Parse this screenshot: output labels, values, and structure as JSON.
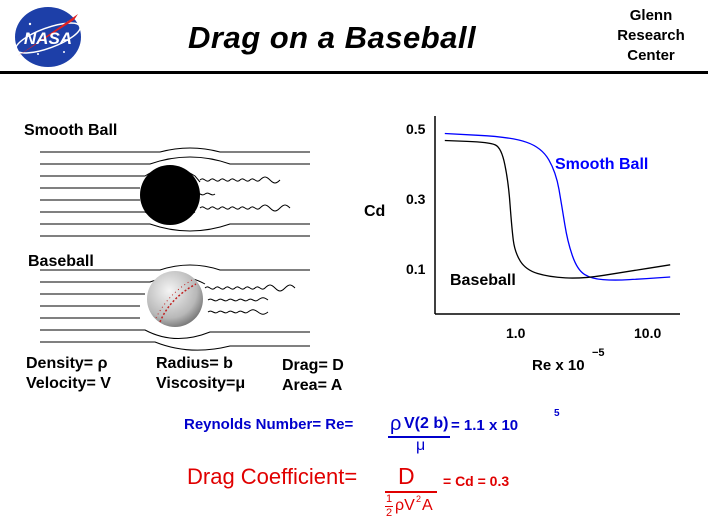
{
  "header": {
    "logo_text": "NASA",
    "title": "Drag on a Baseball",
    "center_lines": [
      "Glenn",
      "Research",
      "Center"
    ]
  },
  "left": {
    "smooth_label": "Smooth Ball",
    "baseball_label": "Baseball"
  },
  "variables": {
    "density": "Density= ρ",
    "velocity": "Velocity= V",
    "radius": "Radius= b",
    "viscosity": "Viscosity=μ",
    "drag": "Drag= D",
    "area": "Area= A"
  },
  "chart_data": {
    "type": "line",
    "ylabel": "Cd",
    "xlabel": "Re x 10",
    "xlabel_exp": "−5",
    "y_ticks": [
      "0.5",
      "0.3",
      "0.1"
    ],
    "x_ticks": [
      "1.0",
      "10.0"
    ],
    "x_scale": "log",
    "ylim": [
      0.0,
      0.55
    ],
    "series": [
      {
        "name": "Smooth Ball",
        "color": "#0000ff",
        "points": [
          [
            0.35,
            0.49
          ],
          [
            1.0,
            0.48
          ],
          [
            1.6,
            0.45
          ],
          [
            2.0,
            0.38
          ],
          [
            2.2,
            0.28
          ],
          [
            2.4,
            0.18
          ],
          [
            2.8,
            0.1
          ],
          [
            3.5,
            0.075
          ],
          [
            5,
            0.07
          ],
          [
            8,
            0.075
          ],
          [
            12,
            0.08
          ]
        ]
      },
      {
        "name": "Baseball",
        "color": "#000000",
        "points": [
          [
            0.35,
            0.47
          ],
          [
            0.7,
            0.465
          ],
          [
            0.85,
            0.45
          ],
          [
            0.95,
            0.35
          ],
          [
            1.0,
            0.22
          ],
          [
            1.05,
            0.15
          ],
          [
            1.25,
            0.1
          ],
          [
            1.8,
            0.08
          ],
          [
            3,
            0.075
          ],
          [
            6,
            0.095
          ],
          [
            12,
            0.115
          ]
        ]
      }
    ]
  },
  "formulas": {
    "reynolds_label": "Reynolds Number= Re=",
    "rho": "ρ",
    "reynolds_num": "V(2 b)",
    "reynolds_result": "= 1.1 x 10",
    "reynolds_exp": "5",
    "mu": "μ",
    "drag_label": "Drag Coefficient=",
    "drag_num": "D",
    "drag_result": "= Cd = 0.3",
    "half_num": "1",
    "half_den": "2",
    "drag_den": "ρV",
    "drag_den_exp": "2",
    "drag_den_tail": "A"
  }
}
